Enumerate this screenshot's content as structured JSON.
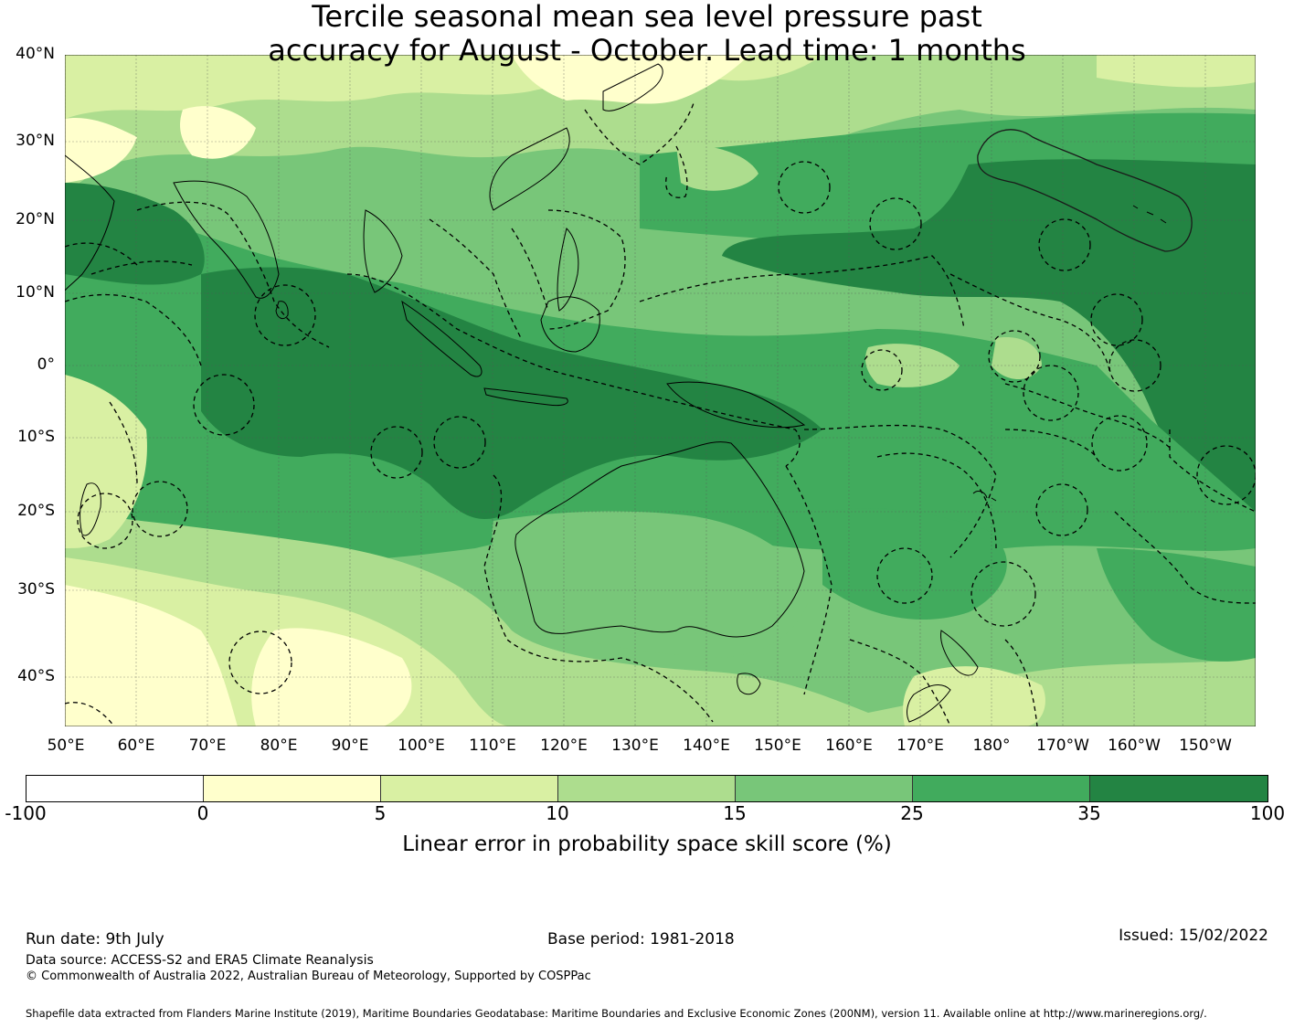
{
  "title": {
    "line1": "Tercile seasonal mean sea level pressure past",
    "line2": "accuracy for August - October. Lead time: 1 months"
  },
  "map": {
    "lat_labels": [
      "40°N",
      "30°N",
      "20°N",
      "10°N",
      "0°",
      "10°S",
      "20°S",
      "30°S",
      "40°S"
    ],
    "lon_labels": [
      "50°E",
      "60°E",
      "70°E",
      "80°E",
      "90°E",
      "100°E",
      "110°E",
      "120°E",
      "130°E",
      "140°E",
      "150°E",
      "160°E",
      "170°E",
      "180°",
      "170°W",
      "160°W",
      "150°W"
    ],
    "lat_values": [
      40,
      30,
      20,
      10,
      0,
      -10,
      -20,
      -30,
      -40
    ],
    "lon_values": [
      50,
      60,
      70,
      80,
      90,
      100,
      110,
      120,
      130,
      140,
      150,
      160,
      170,
      180,
      190,
      200,
      210
    ],
    "extent": {
      "lon_min": 50,
      "lon_max": 217,
      "lat_min": -46,
      "lat_max": 40
    },
    "grid": true
  },
  "colorbar": {
    "ticks": [
      "-100",
      "0",
      "5",
      "10",
      "15",
      "25",
      "35",
      "100"
    ],
    "colors": [
      "#ffffff",
      "#ffffcc",
      "#d9f0a3",
      "#addd8e",
      "#78c679",
      "#41ab5d",
      "#238443"
    ],
    "label": "Linear error in probability space skill score (%)"
  },
  "footer": {
    "run_date": "Run date: 9th July",
    "base_period": "Base period: 1981-2018",
    "issued": "Issued: 15/02/2022",
    "data_source": "Data source: ACCESS-S2 and ERA5 Climate Reanalysis",
    "copyright": "© Commonwealth of Australia 2022, Australian Bureau of Meteorology, Supported by COSPPac",
    "shapefile": "Shapefile data extracted from Flanders Marine Institute (2019), Maritime Boundaries Geodatabase: Maritime Boundaries and Exclusive Economic Zones (200NM), version 11. Available online at http://www.marineregions.org/."
  }
}
